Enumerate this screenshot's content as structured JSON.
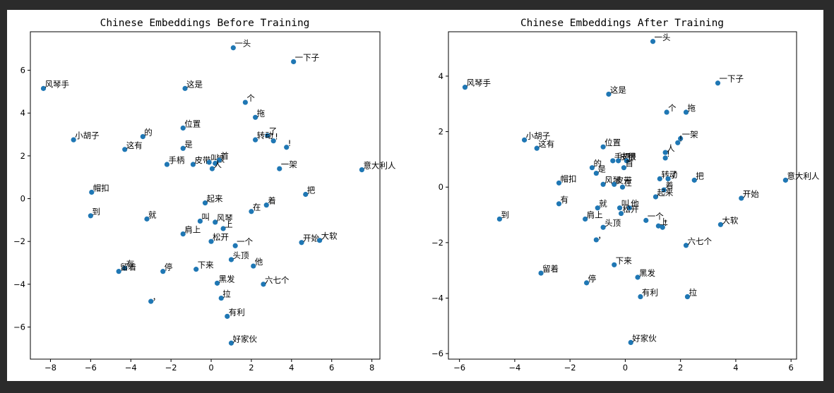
{
  "chart_data": [
    {
      "type": "scatter",
      "title": "Chinese Embeddings Before Training",
      "xlabel": "",
      "ylabel": "",
      "xlim": [
        -9.0,
        8.4
      ],
      "ylim": [
        -7.5,
        7.8
      ],
      "xticks": [
        -8,
        -6,
        -4,
        -2,
        0,
        2,
        4,
        6,
        8
      ],
      "yticks": [
        -6,
        -4,
        -2,
        0,
        2,
        4,
        6
      ],
      "grid": false,
      "color": "#1f77b4",
      "points": [
        {
          "label": "一头",
          "x": 1.1,
          "y": 7.05
        },
        {
          "label": "一下子",
          "x": 4.1,
          "y": 6.4
        },
        {
          "label": "风琴手",
          "x": -8.35,
          "y": 5.15
        },
        {
          "label": "这是",
          "x": -1.3,
          "y": 5.15
        },
        {
          "label": "个",
          "x": 1.7,
          "y": 4.5
        },
        {
          "label": "拖",
          "x": 2.2,
          "y": 3.8
        },
        {
          "label": "位置",
          "x": -1.4,
          "y": 3.3
        },
        {
          "label": "了",
          "x": 2.8,
          "y": 2.95
        },
        {
          "label": "的",
          "x": -3.4,
          "y": 2.9
        },
        {
          "label": "转动",
          "x": 2.2,
          "y": 2.75
        },
        {
          "label": "!",
          "x": 3.1,
          "y": 2.7
        },
        {
          "label": "小胡子",
          "x": -6.85,
          "y": 2.75
        },
        {
          "label": "!",
          "x": 3.75,
          "y": 2.4
        },
        {
          "label": "是",
          "x": -1.4,
          "y": 2.35
        },
        {
          "label": "这有",
          "x": -4.3,
          "y": 2.3
        },
        {
          "label": "手柄",
          "x": -2.2,
          "y": 1.6
        },
        {
          "label": "皮带",
          "x": -0.9,
          "y": 1.6
        },
        {
          "label": "叫",
          "x": -0.1,
          "y": 1.7
        },
        {
          "label": "很",
          "x": 0.2,
          "y": 1.65
        },
        {
          "label": "首",
          "x": 0.4,
          "y": 1.8
        },
        {
          "label": "人",
          "x": 0.05,
          "y": 1.4
        },
        {
          "label": "一架",
          "x": 3.4,
          "y": 1.4
        },
        {
          "label": "意大利人",
          "x": 7.5,
          "y": 1.35
        },
        {
          "label": "帽扣",
          "x": -5.95,
          "y": 0.3
        },
        {
          "label": "把",
          "x": 4.7,
          "y": 0.2
        },
        {
          "label": "起来",
          "x": -0.3,
          "y": -0.2
        },
        {
          "label": "着",
          "x": 2.75,
          "y": -0.3
        },
        {
          "label": "在",
          "x": 2.0,
          "y": -0.6
        },
        {
          "label": "到",
          "x": -6.0,
          "y": -0.8
        },
        {
          "label": "就",
          "x": -3.2,
          "y": -0.95
        },
        {
          "label": "叫",
          "x": -0.55,
          "y": -1.05
        },
        {
          "label": "风琴",
          "x": 0.2,
          "y": -1.1
        },
        {
          "label": "上",
          "x": 0.6,
          "y": -1.4
        },
        {
          "label": "肩上",
          "x": -1.4,
          "y": -1.65
        },
        {
          "label": "松开",
          "x": 0.0,
          "y": -2.0
        },
        {
          "label": "开始",
          "x": 4.5,
          "y": -2.05
        },
        {
          "label": "大软",
          "x": 5.4,
          "y": -1.95
        },
        {
          "label": "一个",
          "x": 1.2,
          "y": -2.2
        },
        {
          "label": "头顶",
          "x": 1.0,
          "y": -2.85
        },
        {
          "label": "他",
          "x": 2.1,
          "y": -3.15
        },
        {
          "label": "有",
          "x": -4.3,
          "y": -3.25
        },
        {
          "label": "留着",
          "x": -4.6,
          "y": -3.4
        },
        {
          "label": "停",
          "x": -2.4,
          "y": -3.4
        },
        {
          "label": "下来",
          "x": -0.75,
          "y": -3.3
        },
        {
          "label": "黑发",
          "x": 0.3,
          "y": -3.95
        },
        {
          "label": "六七个",
          "x": 2.6,
          "y": -4.0
        },
        {
          "label": "，",
          "x": -3.0,
          "y": -4.8
        },
        {
          "label": "拉",
          "x": 0.5,
          "y": -4.65
        },
        {
          "label": "有利",
          "x": 0.8,
          "y": -5.5
        },
        {
          "label": "好家伙",
          "x": 1.0,
          "y": -6.75
        }
      ]
    },
    {
      "type": "scatter",
      "title": "Chinese Embeddings After Training",
      "xlabel": "",
      "ylabel": "",
      "xlim": [
        -6.4,
        6.2
      ],
      "ylim": [
        -6.2,
        5.6
      ],
      "xticks": [
        -6,
        -4,
        -2,
        0,
        2,
        4,
        6
      ],
      "yticks": [
        -6,
        -4,
        -2,
        0,
        2,
        4
      ],
      "grid": false,
      "color": "#1f77b4",
      "points": [
        {
          "label": "一头",
          "x": 1.0,
          "y": 5.25
        },
        {
          "label": "一下子",
          "x": 3.35,
          "y": 3.75
        },
        {
          "label": "风琴手",
          "x": -5.8,
          "y": 3.6
        },
        {
          "label": "这是",
          "x": -0.6,
          "y": 3.35
        },
        {
          "label": "个",
          "x": 1.5,
          "y": 2.7
        },
        {
          "label": "拖",
          "x": 2.2,
          "y": 2.7
        },
        {
          "label": "小胡子",
          "x": -3.65,
          "y": 1.7
        },
        {
          "label": "一架",
          "x": 2.0,
          "y": 1.75
        },
        {
          "label": "!",
          "x": 1.9,
          "y": 1.6
        },
        {
          "label": "这有",
          "x": -3.2,
          "y": 1.4
        },
        {
          "label": "位置",
          "x": -0.8,
          "y": 1.45
        },
        {
          "label": "人",
          "x": 1.45,
          "y": 1.25
        },
        {
          "label": "!",
          "x": 1.45,
          "y": 1.05
        },
        {
          "label": "手柄",
          "x": -0.45,
          "y": 0.95
        },
        {
          "label": "皮带",
          "x": -0.25,
          "y": 0.95
        },
        {
          "label": "很",
          "x": 0.05,
          "y": 0.95
        },
        {
          "label": "首",
          "x": -0.05,
          "y": 0.7
        },
        {
          "label": "的",
          "x": -1.2,
          "y": 0.7
        },
        {
          "label": "是",
          "x": -1.05,
          "y": 0.5
        },
        {
          "label": "转动",
          "x": 1.25,
          "y": 0.3
        },
        {
          "label": "了",
          "x": 1.55,
          "y": 0.3
        },
        {
          "label": "把",
          "x": 2.5,
          "y": 0.25
        },
        {
          "label": "意大利人",
          "x": 5.8,
          "y": 0.25
        },
        {
          "label": "帽扣",
          "x": -2.4,
          "y": 0.15
        },
        {
          "label": "风琴",
          "x": -0.8,
          "y": 0.1
        },
        {
          "label": "皮带",
          "x": -0.4,
          "y": 0.1
        },
        {
          "label": "在",
          "x": -0.1,
          "y": 0.0
        },
        {
          "label": "着",
          "x": 1.4,
          "y": -0.1
        },
        {
          "label": "起来",
          "x": 1.1,
          "y": -0.35
        },
        {
          "label": "开始",
          "x": 4.2,
          "y": -0.4
        },
        {
          "label": "有",
          "x": -2.4,
          "y": -0.6
        },
        {
          "label": "就",
          "x": -1.0,
          "y": -0.75
        },
        {
          "label": "叫",
          "x": -0.2,
          "y": -0.75
        },
        {
          "label": "他",
          "x": 0.15,
          "y": -0.75
        },
        {
          "label": "松开",
          "x": -0.15,
          "y": -0.95
        },
        {
          "label": "到",
          "x": -4.55,
          "y": -1.15
        },
        {
          "label": "肩上",
          "x": -1.45,
          "y": -1.15
        },
        {
          "label": "一个",
          "x": 0.75,
          "y": -1.2
        },
        {
          "label": "头顶",
          "x": -0.8,
          "y": -1.45
        },
        {
          "label": "上",
          "x": 1.2,
          "y": -1.4
        },
        {
          "label": "!",
          "x": 1.35,
          "y": -1.45
        },
        {
          "label": "大软",
          "x": 3.45,
          "y": -1.35
        },
        {
          "label": "，",
          "x": -1.05,
          "y": -1.9
        },
        {
          "label": "六七个",
          "x": 2.2,
          "y": -2.1
        },
        {
          "label": "下来",
          "x": -0.4,
          "y": -2.8
        },
        {
          "label": "留着",
          "x": -3.05,
          "y": -3.1
        },
        {
          "label": "黑发",
          "x": 0.45,
          "y": -3.25
        },
        {
          "label": "停",
          "x": -1.4,
          "y": -3.45
        },
        {
          "label": "有利",
          "x": 0.55,
          "y": -3.95
        },
        {
          "label": "拉",
          "x": 2.25,
          "y": -3.95
        },
        {
          "label": "好家伙",
          "x": 0.2,
          "y": -5.6
        }
      ]
    }
  ]
}
